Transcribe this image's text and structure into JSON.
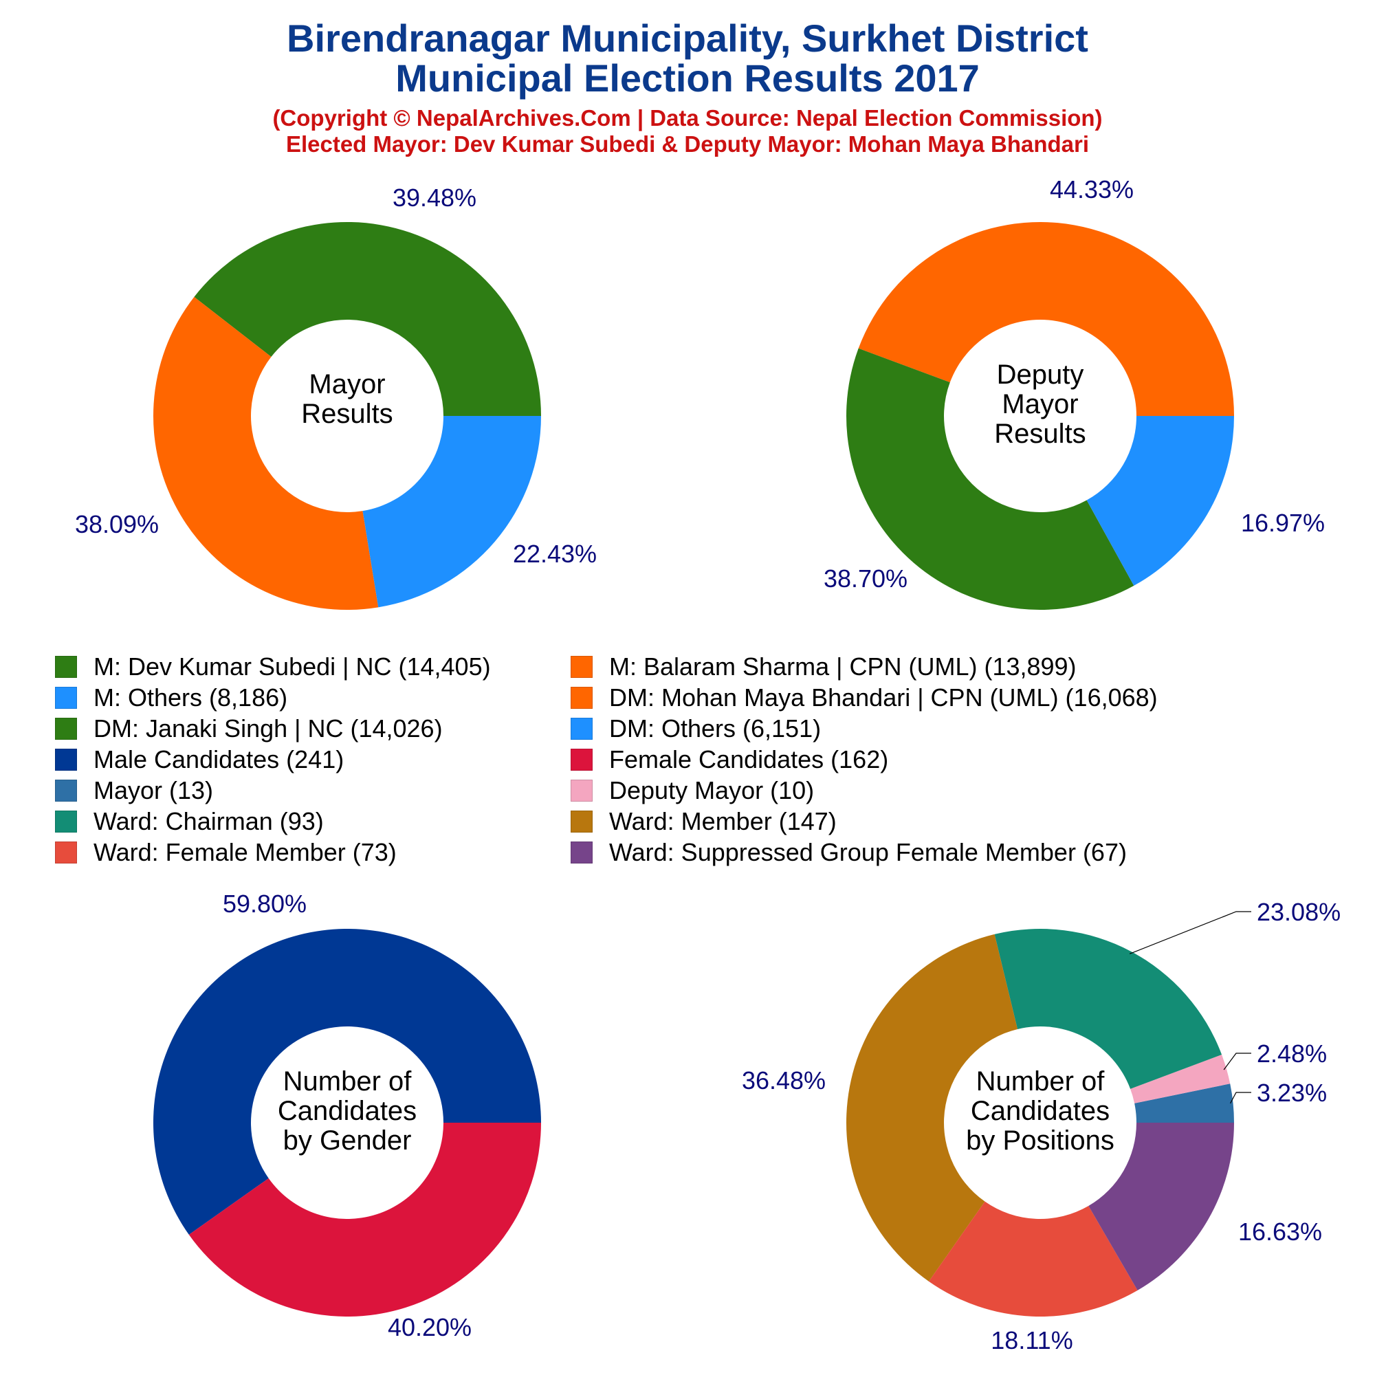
{
  "header": {
    "title_line1": "Birendranagar Municipality, Surkhet District",
    "title_line2": "Municipal Election Results 2017",
    "subtitle_line1": "(Copyright © NepalArchives.Com | Data Source: Nepal Election Commission)",
    "subtitle_line2": "Elected Mayor: Dev Kumar Subedi & Deputy Mayor: Mohan Maya Bhandari"
  },
  "colors": {
    "nc_green": "#2e7d14",
    "uml_orange": "#ff6600",
    "others_blue": "#1e90ff",
    "male_navy": "#003894",
    "female_crimson": "#dc143c",
    "mayor_blue": "#2e70a6",
    "deputy_pink": "#f4a6c0",
    "chairman_teal": "#138d75",
    "member_brown": "#b8770e",
    "female_member_red": "#e74c3c",
    "suppressed_purple": "#76448a",
    "label_text": "#0a0a7a"
  },
  "legend": {
    "left": [
      {
        "label": "M: Dev Kumar Subedi | NC (14,405)",
        "color": "#2e7d14"
      },
      {
        "label": "M: Others (8,186)",
        "color": "#1e90ff"
      },
      {
        "label": "DM: Janaki Singh | NC (14,026)",
        "color": "#2e7d14"
      },
      {
        "label": "Male Candidates (241)",
        "color": "#003894"
      },
      {
        "label": "Mayor (13)",
        "color": "#2e70a6"
      },
      {
        "label": "Ward: Chairman (93)",
        "color": "#138d75"
      },
      {
        "label": "Ward: Female Member (73)",
        "color": "#e74c3c"
      }
    ],
    "right": [
      {
        "label": "M: Balaram Sharma | CPN (UML) (13,899)",
        "color": "#ff6600"
      },
      {
        "label": "DM: Mohan Maya Bhandari | CPN (UML) (16,068)",
        "color": "#ff6600"
      },
      {
        "label": "DM: Others (6,151)",
        "color": "#1e90ff"
      },
      {
        "label": "Female Candidates (162)",
        "color": "#dc143c"
      },
      {
        "label": "Deputy Mayor (10)",
        "color": "#f4a6c0"
      },
      {
        "label": "Ward: Member (147)",
        "color": "#b8770e"
      },
      {
        "label": "Ward: Suppressed Group Female Member (67)",
        "color": "#76448a"
      }
    ]
  },
  "chart_data": [
    {
      "type": "pie",
      "donut": true,
      "center_label": [
        "Mayor",
        "Results"
      ],
      "slices": [
        {
          "label": "M: Dev Kumar Subedi | NC",
          "value": 14405,
          "percent": "39.48%",
          "color": "#2e7d14"
        },
        {
          "label": "M: Balaram Sharma | CPN (UML)",
          "value": 13899,
          "percent": "38.09%",
          "color": "#ff6600"
        },
        {
          "label": "M: Others",
          "value": 8186,
          "percent": "22.43%",
          "color": "#1e90ff"
        }
      ]
    },
    {
      "type": "pie",
      "donut": true,
      "center_label": [
        "Deputy",
        "Mayor",
        "Results"
      ],
      "slices": [
        {
          "label": "DM: Mohan Maya Bhandari | CPN (UML)",
          "value": 16068,
          "percent": "44.33%",
          "color": "#ff6600"
        },
        {
          "label": "DM: Janaki Singh | NC",
          "value": 14026,
          "percent": "38.70%",
          "color": "#2e7d14"
        },
        {
          "label": "DM: Others",
          "value": 6151,
          "percent": "16.97%",
          "color": "#1e90ff"
        }
      ]
    },
    {
      "type": "pie",
      "donut": true,
      "center_label": [
        "Number of",
        "Candidates",
        "by Gender"
      ],
      "slices": [
        {
          "label": "Male Candidates",
          "value": 241,
          "percent": "59.80%",
          "color": "#003894"
        },
        {
          "label": "Female Candidates",
          "value": 162,
          "percent": "40.20%",
          "color": "#dc143c"
        }
      ]
    },
    {
      "type": "pie",
      "donut": true,
      "center_label": [
        "Number of",
        "Candidates",
        "by Positions"
      ],
      "slices": [
        {
          "label": "Ward: Chairman",
          "value": 93,
          "percent": "23.08%",
          "color": "#138d75"
        },
        {
          "label": "Ward: Member",
          "value": 147,
          "percent": "36.48%",
          "color": "#b8770e"
        },
        {
          "label": "Ward: Female Member",
          "value": 73,
          "percent": "18.11%",
          "color": "#e74c3c"
        },
        {
          "label": "Ward: Suppressed Group Female Member",
          "value": 67,
          "percent": "16.63%",
          "color": "#76448a"
        },
        {
          "label": "Mayor",
          "value": 13,
          "percent": "3.23%",
          "color": "#2e70a6"
        },
        {
          "label": "Deputy Mayor",
          "value": 10,
          "percent": "2.48%",
          "color": "#f4a6c0"
        }
      ]
    }
  ]
}
